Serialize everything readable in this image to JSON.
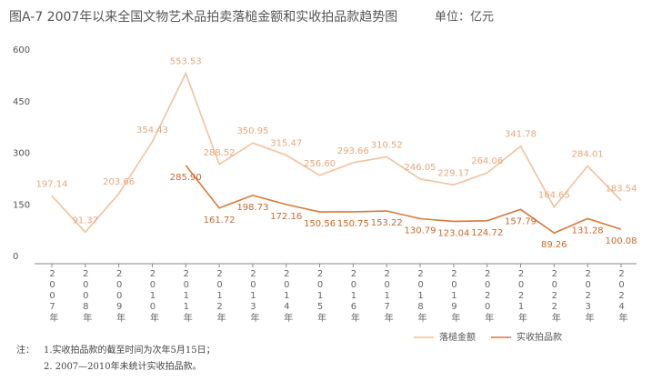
{
  "chart_data": {
    "type": "line",
    "title": "图A-7  2007年以来全国文物艺术品拍卖落槌金额和实收拍品款趋势图",
    "subtitle": "单位：亿元",
    "categories": [
      "2007年",
      "2008年",
      "2009年",
      "2010年",
      "2011年",
      "2012年",
      "2013年",
      "2014年",
      "2015年",
      "2016年",
      "2017年",
      "2018年",
      "2019年",
      "2020年",
      "2021年",
      "2022年",
      "2023年",
      "2024年"
    ],
    "series": [
      {
        "name": "落槌金额",
        "color": "#f3c19a",
        "values": [
          197.14,
          91.37,
          203.66,
          354.43,
          553.53,
          288.52,
          350.95,
          315.47,
          256.6,
          293.66,
          310.52,
          246.05,
          229.17,
          264.06,
          341.78,
          164.65,
          284.01,
          183.54
        ],
        "value_labels": [
          "197.14",
          "91.37",
          "203.66",
          "354.43",
          "553.53",
          "288.52",
          "350.95",
          "315.47",
          "256.60",
          "293.66",
          "310.52",
          "246.05",
          "229.17",
          "264.06",
          "341.78",
          "164.65",
          "284.01",
          "183.54"
        ]
      },
      {
        "name": "实收拍品款",
        "color": "#d9783a",
        "values": [
          null,
          null,
          null,
          null,
          285.9,
          161.72,
          198.73,
          172.16,
          150.56,
          150.75,
          153.22,
          130.79,
          123.04,
          124.72,
          157.79,
          89.26,
          131.28,
          100.08
        ],
        "value_labels": [
          null,
          null,
          null,
          null,
          "285.90",
          "161.72",
          "198.73",
          "172.16",
          "150.56",
          "150.75",
          "153.22",
          "130.79",
          "123.04",
          "124.72",
          "157.79",
          "89.26",
          "131.28",
          "100.08"
        ]
      }
    ],
    "ylim": [
      0,
      600
    ],
    "yticks": [
      0,
      150,
      300,
      450,
      600
    ],
    "notes": [
      "注：",
      "1.实收拍品款的截至时间为次年5月15日；",
      "2. 2007—2010年未统计实收拍品款。"
    ]
  }
}
